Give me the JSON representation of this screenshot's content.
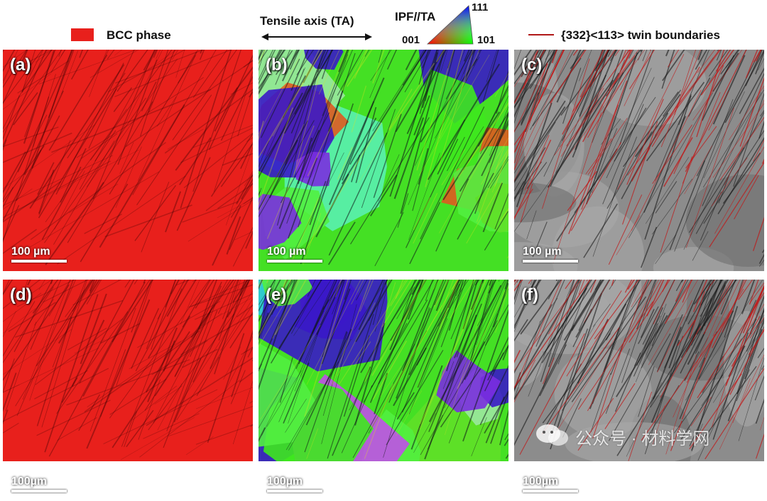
{
  "legend": {
    "bcc_label": "BCC phase",
    "bcc_color": "#e8201c",
    "tensile_axis_label": "Tensile axis (TA)",
    "ipf_title": "IPF//TA",
    "ipf_corner_001": "001",
    "ipf_corner_101": "101",
    "ipf_corner_111": "111",
    "twin_label": "{332}<113> twin boundaries",
    "twin_color": "#b01818"
  },
  "panels": [
    {
      "label": "(a)",
      "scale": "100 µm"
    },
    {
      "label": "(b)",
      "scale": "100 µm"
    },
    {
      "label": "(c)",
      "scale": "100 µm"
    },
    {
      "label": "(d)",
      "scale": "100µm"
    },
    {
      "label": "(e)",
      "scale": "100µm"
    },
    {
      "label": "(f)",
      "scale": "100µm"
    }
  ],
  "watermark": "公众号 · 材料学网"
}
